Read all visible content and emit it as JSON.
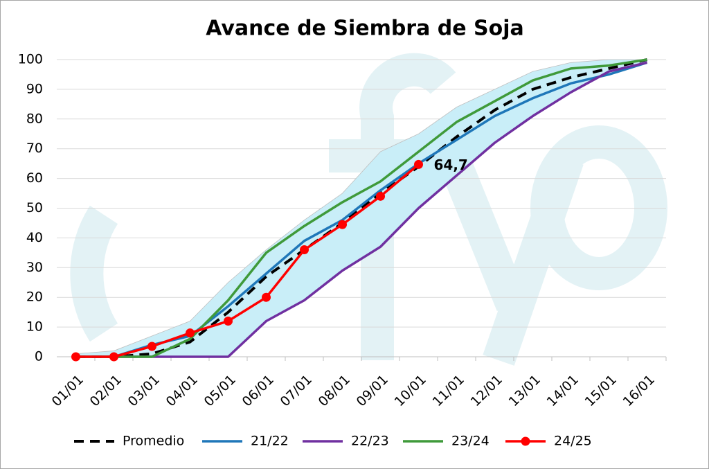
{
  "chart_data": {
    "type": "line",
    "title": "Avance de Siembra de Soja",
    "categories": [
      "01/01",
      "02/01",
      "03/01",
      "04/01",
      "05/01",
      "06/01",
      "07/01",
      "08/01",
      "09/01",
      "10/01",
      "11/01",
      "12/01",
      "13/01",
      "14/01",
      "15/01",
      "16/01"
    ],
    "ylim": [
      0,
      100
    ],
    "yticks": [
      0,
      10,
      20,
      30,
      40,
      50,
      60,
      70,
      80,
      90,
      100
    ],
    "grid": true,
    "legend": "bottom",
    "band": {
      "color": "#c9eef8",
      "upper": [
        1,
        2,
        7,
        12,
        25,
        36,
        46,
        55,
        69,
        75,
        84,
        90,
        96,
        99,
        100,
        100
      ],
      "lower": [
        0,
        0,
        0,
        0,
        0,
        12,
        19,
        29,
        37,
        50,
        61,
        72,
        81,
        89,
        96,
        99
      ]
    },
    "series": [
      {
        "name": "Promedio",
        "color": "#000000",
        "dash": true,
        "values": [
          0,
          0,
          1,
          5,
          15,
          27,
          36,
          45,
          55,
          64,
          74,
          83,
          90,
          94,
          97,
          100
        ]
      },
      {
        "name": "21/22",
        "color": "#1f77b9",
        "values": [
          0,
          0,
          4,
          7,
          17,
          28,
          39,
          46,
          56,
          65,
          73,
          81,
          87,
          92,
          95,
          99
        ]
      },
      {
        "name": "22/23",
        "color": "#7030a0",
        "values": [
          0,
          0,
          0,
          0,
          0,
          12,
          19,
          29,
          37,
          50,
          61,
          72,
          81,
          89,
          96,
          99
        ]
      },
      {
        "name": "23/24",
        "color": "#3f9a3a",
        "values": [
          0,
          0,
          0,
          6,
          19,
          35,
          44,
          52,
          59,
          69,
          79,
          86,
          93,
          97,
          98,
          100
        ]
      },
      {
        "name": "24/25",
        "color": "#ff0000",
        "markers": true,
        "values": [
          0,
          0,
          3.5,
          8,
          12,
          20,
          36,
          44.5,
          54,
          64.7,
          null,
          null,
          null,
          null,
          null,
          null
        ],
        "value_labels": [
          null,
          null,
          null,
          null,
          null,
          null,
          null,
          null,
          null,
          "64,7",
          null,
          null,
          null,
          null,
          null,
          null
        ]
      }
    ]
  }
}
